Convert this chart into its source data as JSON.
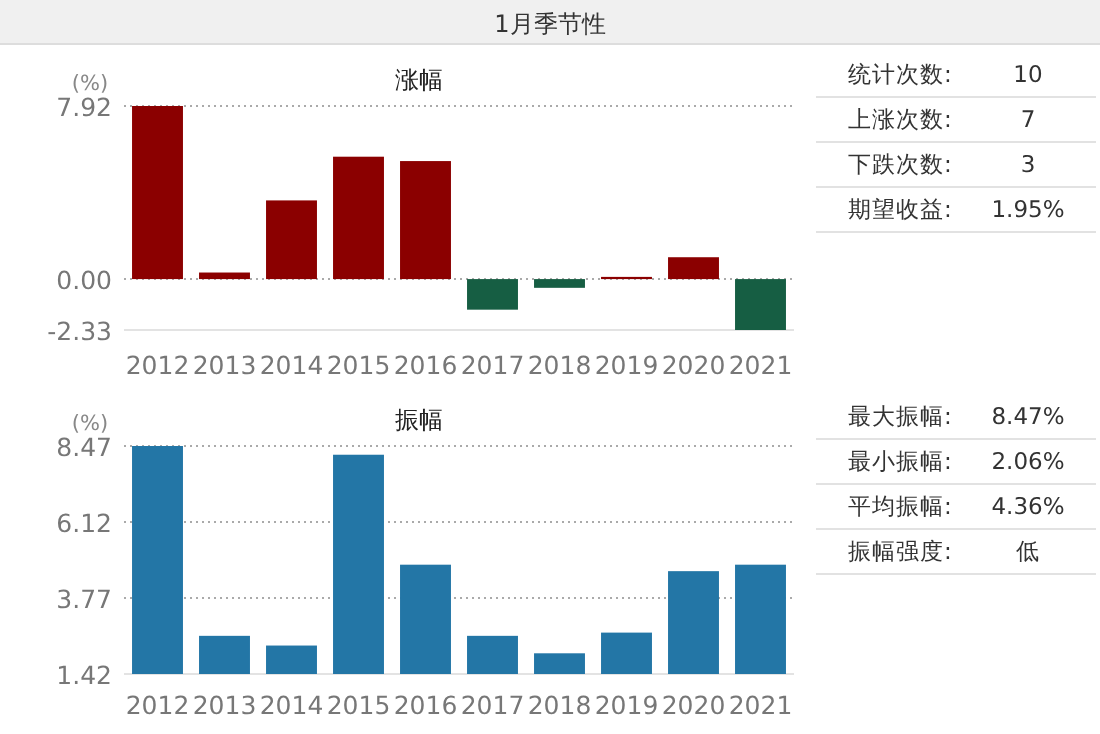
{
  "chart_data": [
    {
      "type": "other",
      "title": "1月季节性"
    },
    {
      "type": "bar",
      "title": "涨幅",
      "ylabel": "(%)",
      "categories": [
        "2012",
        "2013",
        "2014",
        "2015",
        "2016",
        "2017",
        "2018",
        "2019",
        "2020",
        "2021"
      ],
      "values": [
        7.92,
        0.3,
        3.6,
        5.6,
        5.4,
        -1.4,
        -0.4,
        0.1,
        1.0,
        -2.33
      ],
      "colors": [
        "#8b0000",
        "#8b0000",
        "#8b0000",
        "#8b0000",
        "#8b0000",
        "#165e43",
        "#165e43",
        "#8b0000",
        "#8b0000",
        "#165e43"
      ],
      "ylim": [
        -2.33,
        7.92
      ],
      "yticks": [
        -2.33,
        {
          "value": 0,
          "label": "0.00"
        },
        7.92
      ],
      "grid": "y"
    },
    {
      "type": "other",
      "annotations": [
        "统计次数:",
        "10",
        "上涨次数:",
        "7",
        "下跌次数:",
        "3",
        "期望收益:",
        "1.95%"
      ]
    },
    {
      "type": "bar",
      "title": "振幅",
      "ylabel": "(%)",
      "categories": [
        "2012",
        "2013",
        "2014",
        "2015",
        "2016",
        "2017",
        "2018",
        "2019",
        "2020",
        "2021"
      ],
      "values": [
        8.47,
        2.6,
        2.3,
        8.2,
        4.8,
        2.6,
        2.06,
        2.7,
        4.6,
        4.8
      ],
      "color": "#2376a6",
      "ylim": [
        1.42,
        8.47
      ],
      "yticks": [
        1.42,
        3.77,
        6.12,
        8.47
      ],
      "grid": "y"
    },
    {
      "type": "other",
      "annotations": [
        "最大振幅:",
        "8.47%",
        "最小振幅:",
        "2.06%",
        "平均振幅:",
        "4.36%",
        "振幅强度:",
        "低"
      ]
    }
  ]
}
